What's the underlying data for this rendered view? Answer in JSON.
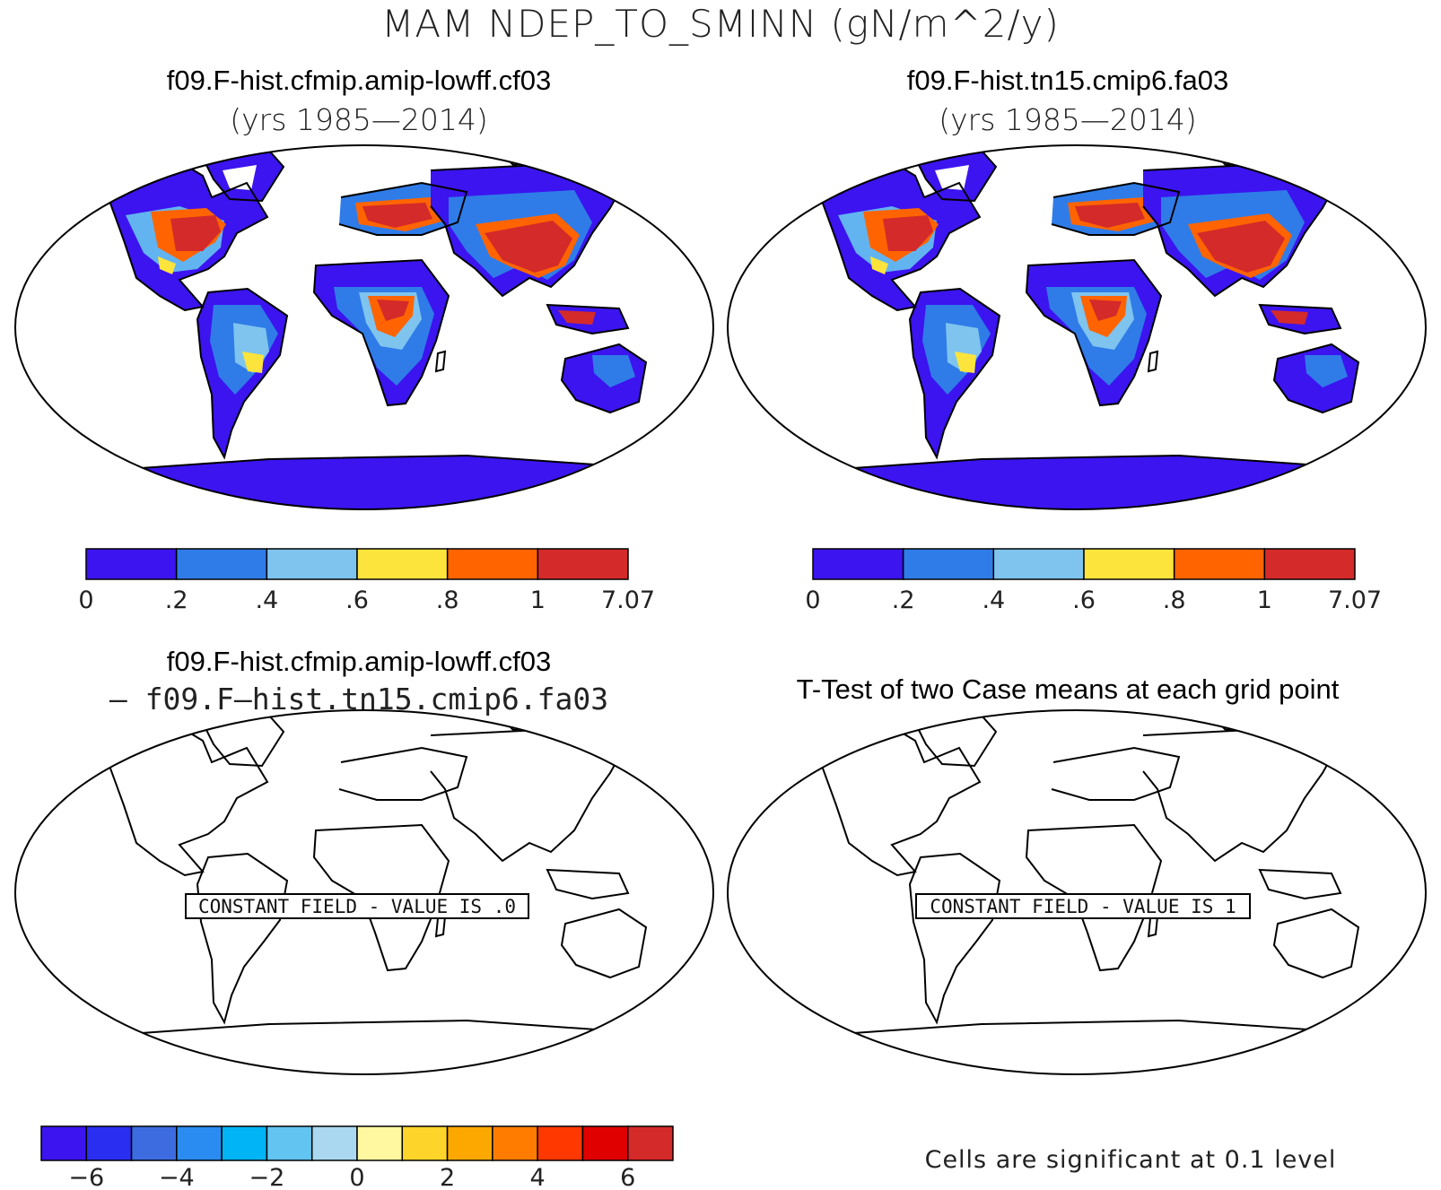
{
  "main_title": "MAM NDEP_TO_SMINN (gN/m^2/y)",
  "panels": [
    {
      "title": "f09.F-hist.cfmip.amip-lowff.cf03",
      "subtitle": "(yrs 1985—2014)"
    },
    {
      "title": "f09.F-hist.tn15.cmip6.fa03",
      "subtitle": "(yrs 1985—2014)"
    },
    {
      "title": "f09.F-hist.cfmip.amip-lowff.cf03",
      "subtitle": "— f09.F—hist.tn15.cmip6.fa03",
      "constant_field_label": "CONSTANT FIELD - VALUE IS .0"
    },
    {
      "title": "T-Test of two Case means at each grid point",
      "constant_field_label": "CONSTANT FIELD - VALUE IS 1",
      "note": "Cells are significant at 0.1 level"
    }
  ],
  "colorbar_case": {
    "labels": [
      "0",
      ".2",
      ".4",
      ".6",
      ".8",
      "1",
      "7.07"
    ],
    "colors": [
      "#3c14f0",
      "#2f7ce8",
      "#7ec4ee",
      "#fce43c",
      "#ff6400",
      "#d42a2a"
    ]
  },
  "colorbar_diff": {
    "labels": [
      "−6",
      "−4",
      "−2",
      "0",
      "2",
      "4",
      "6"
    ],
    "colors": [
      "#3c14f0",
      "#2a2ef0",
      "#3c6ce0",
      "#2a8cf0",
      "#00b4f5",
      "#62c4f0",
      "#aad8f0",
      "#fff8a0",
      "#fcd42a",
      "#fca800",
      "#ff7c00",
      "#ff3800",
      "#e00000",
      "#d42a2a"
    ]
  },
  "chart_data": [
    {
      "type": "heatmap",
      "title": "f09.F-hist.cfmip.amip-lowff.cf03",
      "levels": [
        0,
        0.2,
        0.4,
        0.6,
        0.8,
        1,
        7.07
      ]
    },
    {
      "type": "heatmap",
      "title": "f09.F-hist.tn15.cmip6.fa03",
      "levels": [
        0,
        0.2,
        0.4,
        0.6,
        0.8,
        1,
        7.07
      ]
    },
    {
      "type": "heatmap",
      "levels": [
        -6,
        -4,
        -2,
        0,
        2,
        4,
        6
      ],
      "constant_value": 0
    },
    {
      "type": "heatmap",
      "title": "T-Test of two Case means at each grid point",
      "constant_value": 1
    }
  ]
}
